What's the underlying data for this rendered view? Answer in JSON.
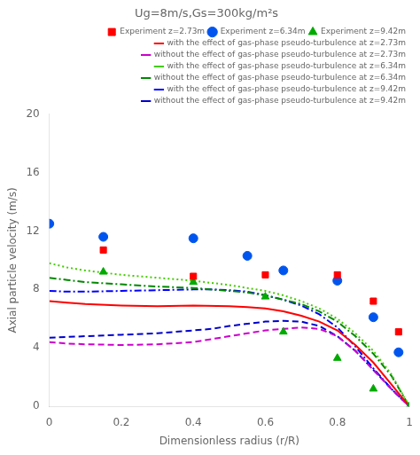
{
  "chart_data": {
    "type": "line",
    "title": "Ug=8m/s,Gs=300kg/m²s",
    "xlabel": "Dimensionless radius (r/R)",
    "ylabel": "Axial particle velocity (m/s)",
    "xlim": [
      0,
      1.0
    ],
    "xticks": [
      0,
      0.2,
      0.4,
      0.6,
      0.8,
      1.0
    ],
    "ylim": [
      0,
      20
    ],
    "yticks": [
      0,
      4,
      8,
      12,
      16,
      20
    ],
    "grid": false,
    "legend": "upper right",
    "series": [
      {
        "name": "with the effect of gas-phase pseudo-turbulence at z=2.73m",
        "type": "line",
        "color": "#ff0000",
        "line_style": "solid",
        "x": [
          0.0,
          0.05,
          0.1,
          0.2,
          0.3,
          0.4,
          0.5,
          0.55,
          0.6,
          0.65,
          0.7,
          0.75,
          0.8,
          0.85,
          0.9,
          0.95,
          1.0
        ],
        "values": [
          7.2,
          7.1,
          7.0,
          6.9,
          6.85,
          6.9,
          6.85,
          6.8,
          6.7,
          6.5,
          6.2,
          5.8,
          5.2,
          4.2,
          3.0,
          1.5,
          0.0
        ]
      },
      {
        "name": "without the effect of gas-phase pseudo-turbulence at z=2.73m",
        "type": "line",
        "color": "#cc00cc",
        "line_style": "dashed",
        "x": [
          0.0,
          0.05,
          0.1,
          0.2,
          0.3,
          0.4,
          0.45,
          0.5,
          0.55,
          0.6,
          0.65,
          0.7,
          0.75,
          0.8,
          0.85,
          0.9,
          0.95,
          1.0
        ],
        "values": [
          4.4,
          4.3,
          4.25,
          4.2,
          4.25,
          4.4,
          4.6,
          4.8,
          5.0,
          5.2,
          5.3,
          5.4,
          5.3,
          4.8,
          3.8,
          2.5,
          1.2,
          0.0
        ]
      },
      {
        "name": "with the effect of gas-phase pseudo-turbulence at z=6.34m",
        "type": "line",
        "color": "#44cc00",
        "line_style": "dotted",
        "x": [
          0.0,
          0.05,
          0.1,
          0.2,
          0.3,
          0.4,
          0.5,
          0.55,
          0.6,
          0.65,
          0.7,
          0.75,
          0.8,
          0.85,
          0.9,
          0.95,
          1.0
        ],
        "values": [
          9.8,
          9.5,
          9.3,
          9.0,
          8.8,
          8.6,
          8.3,
          8.1,
          7.9,
          7.6,
          7.2,
          6.7,
          6.0,
          5.0,
          3.8,
          2.2,
          0.0
        ]
      },
      {
        "name": "without the effect of gas-phase pseudo-turbulence at z=6.34m",
        "type": "line",
        "color": "#008800",
        "line_style": "dashdot",
        "x": [
          0.0,
          0.05,
          0.1,
          0.2,
          0.3,
          0.4,
          0.5,
          0.55,
          0.6,
          0.65,
          0.7,
          0.75,
          0.8,
          0.85,
          0.9,
          0.95,
          1.0
        ],
        "values": [
          8.8,
          8.65,
          8.5,
          8.35,
          8.2,
          8.1,
          7.9,
          7.8,
          7.6,
          7.3,
          7.0,
          6.5,
          5.8,
          4.8,
          3.6,
          2.1,
          0.0
        ]
      },
      {
        "name": "with the effect of gas-phase pseudo-turbulence at z=9.42m",
        "type": "line",
        "color": "#0000ff",
        "line_style": "dashdot",
        "x": [
          0.0,
          0.05,
          0.1,
          0.2,
          0.3,
          0.4,
          0.45,
          0.5,
          0.55,
          0.6,
          0.65,
          0.7,
          0.75,
          0.8,
          0.85,
          0.9,
          0.95,
          1.0
        ],
        "values": [
          7.9,
          7.85,
          7.85,
          7.9,
          7.95,
          8.0,
          8.0,
          7.95,
          7.85,
          7.6,
          7.3,
          6.9,
          6.3,
          5.4,
          4.1,
          2.6,
          1.2,
          0.0
        ]
      },
      {
        "name": "without the effect of gas-phase pseudo-turbulence at z=9.42m",
        "type": "line",
        "color": "#0000cc",
        "line_style": "dashed",
        "x": [
          0.0,
          0.05,
          0.1,
          0.2,
          0.3,
          0.4,
          0.45,
          0.5,
          0.55,
          0.6,
          0.65,
          0.7,
          0.75,
          0.8,
          0.85,
          0.9,
          0.95,
          1.0
        ],
        "values": [
          4.7,
          4.75,
          4.8,
          4.9,
          5.0,
          5.2,
          5.3,
          5.5,
          5.65,
          5.8,
          5.85,
          5.8,
          5.5,
          4.8,
          3.8,
          2.5,
          1.2,
          0.0
        ]
      },
      {
        "name": "Experiment z=2.73m",
        "type": "scatter",
        "color": "#ff0000",
        "marker": "square",
        "x": [
          0.15,
          0.4,
          0.6,
          0.8,
          0.9,
          0.97
        ],
        "values": [
          10.7,
          8.9,
          9.0,
          9.0,
          7.2,
          5.1
        ]
      },
      {
        "name": "Experiment z=6.34m",
        "type": "scatter",
        "color": "#0055ee",
        "marker": "circle",
        "x": [
          0.0,
          0.15,
          0.4,
          0.55,
          0.65,
          0.8,
          0.9,
          0.97
        ],
        "values": [
          12.5,
          11.6,
          11.5,
          10.3,
          9.3,
          8.6,
          6.1,
          3.7
        ]
      },
      {
        "name": "Experiment z=9.42m",
        "type": "scatter",
        "color": "#00aa00",
        "marker": "triangle",
        "x": [
          0.15,
          0.4,
          0.6,
          0.65,
          0.8,
          0.9,
          1.0
        ],
        "values": [
          9.2,
          8.5,
          7.5,
          5.1,
          3.3,
          1.2,
          0.0
        ]
      }
    ]
  }
}
